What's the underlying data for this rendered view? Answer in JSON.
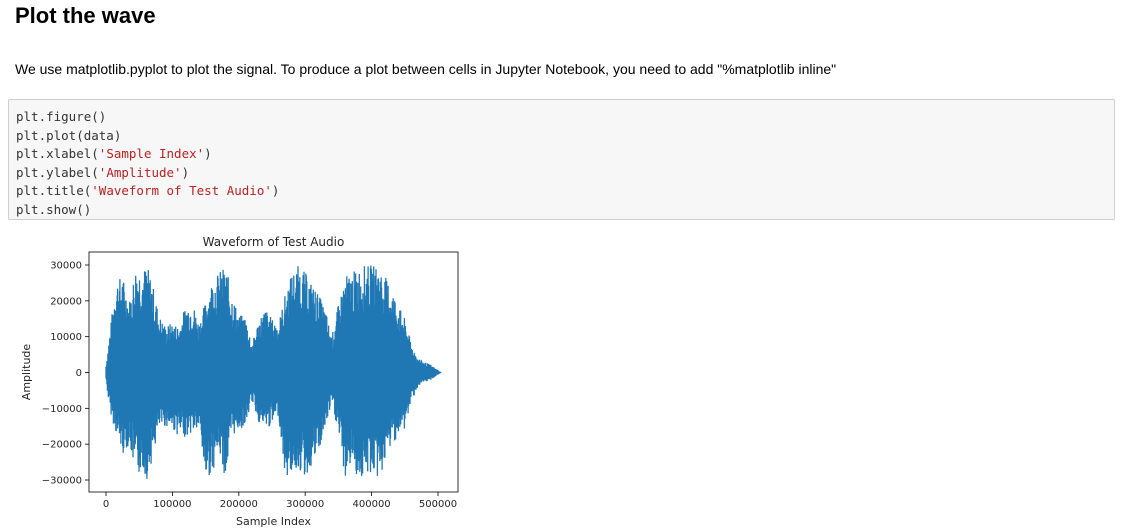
{
  "heading": "Plot the wave",
  "paragraph": "We use matplotlib.pyplot to plot the signal. To produce a plot between cells in Jupyter Notebook, you need to add \"%matplotlib inline\"",
  "code_lines": [
    {
      "pre": "plt.figure()",
      "str": "",
      "post": ""
    },
    {
      "pre": "plt.plot(data)",
      "str": "",
      "post": ""
    },
    {
      "pre": "plt.xlabel(",
      "str": "'Sample Index'",
      "post": ")"
    },
    {
      "pre": "plt.ylabel(",
      "str": "'Amplitude'",
      "post": ")"
    },
    {
      "pre": "plt.title(",
      "str": "'Waveform of Test Audio'",
      "post": ")"
    },
    {
      "pre": "plt.show()",
      "str": "",
      "post": ""
    }
  ],
  "chart_data": {
    "type": "line",
    "title": "Waveform of Test Audio",
    "xlabel": "Sample Index",
    "ylabel": "Amplitude",
    "xlim": [
      -25000,
      530000
    ],
    "ylim": [
      -33500,
      33500
    ],
    "xticks": [
      0,
      100000,
      200000,
      300000,
      400000,
      500000
    ],
    "xtick_labels": [
      "0",
      "100000",
      "200000",
      "300000",
      "400000",
      "500000"
    ],
    "yticks": [
      30000,
      20000,
      10000,
      0,
      -10000,
      -20000,
      -30000
    ],
    "ytick_labels": [
      "30000",
      "20000",
      "10000",
      "0",
      "−10000",
      "−20000",
      "−30000"
    ],
    "color": "#1f77b4",
    "grid": false,
    "envelope": {
      "x": [
        0,
        5000,
        15000,
        25000,
        35000,
        45000,
        55000,
        62000,
        70000,
        80000,
        90000,
        100000,
        110000,
        120000,
        130000,
        140000,
        150000,
        160000,
        170000,
        180000,
        190000,
        200000,
        210000,
        220000,
        230000,
        240000,
        250000,
        260000,
        270000,
        280000,
        290000,
        300000,
        310000,
        320000,
        330000,
        340000,
        350000,
        360000,
        370000,
        380000,
        390000,
        400000,
        410000,
        420000,
        430000,
        440000,
        450000,
        460000,
        470000,
        480000,
        490000,
        505000
      ],
      "upper": [
        2000,
        10000,
        26000,
        27000,
        20000,
        30000,
        29000,
        30000,
        25000,
        16000,
        13000,
        14000,
        13000,
        19000,
        20000,
        14000,
        20000,
        26000,
        28000,
        30000,
        22000,
        16000,
        16000,
        8000,
        15000,
        18000,
        15000,
        14000,
        22000,
        28000,
        30000,
        28000,
        25000,
        22000,
        18000,
        10000,
        19000,
        27000,
        28000,
        29000,
        30000,
        30000,
        30000,
        27000,
        24000,
        19000,
        15000,
        8000,
        4000,
        3000,
        2000,
        0
      ],
      "lower": [
        -2000,
        -10000,
        -17000,
        -23000,
        -20000,
        -30000,
        -27000,
        -30000,
        -24000,
        -16000,
        -15000,
        -16000,
        -18000,
        -18000,
        -17000,
        -16000,
        -30000,
        -28000,
        -22000,
        -30000,
        -18000,
        -16000,
        -15000,
        -8000,
        -14000,
        -16000,
        -15000,
        -12000,
        -30000,
        -28000,
        -27000,
        -30000,
        -26000,
        -23000,
        -16000,
        -9000,
        -17000,
        -30000,
        -25000,
        -30000,
        -30000,
        -28000,
        -30000,
        -26000,
        -20000,
        -18000,
        -16000,
        -8000,
        -4000,
        -3000,
        -2000,
        0
      ]
    }
  }
}
